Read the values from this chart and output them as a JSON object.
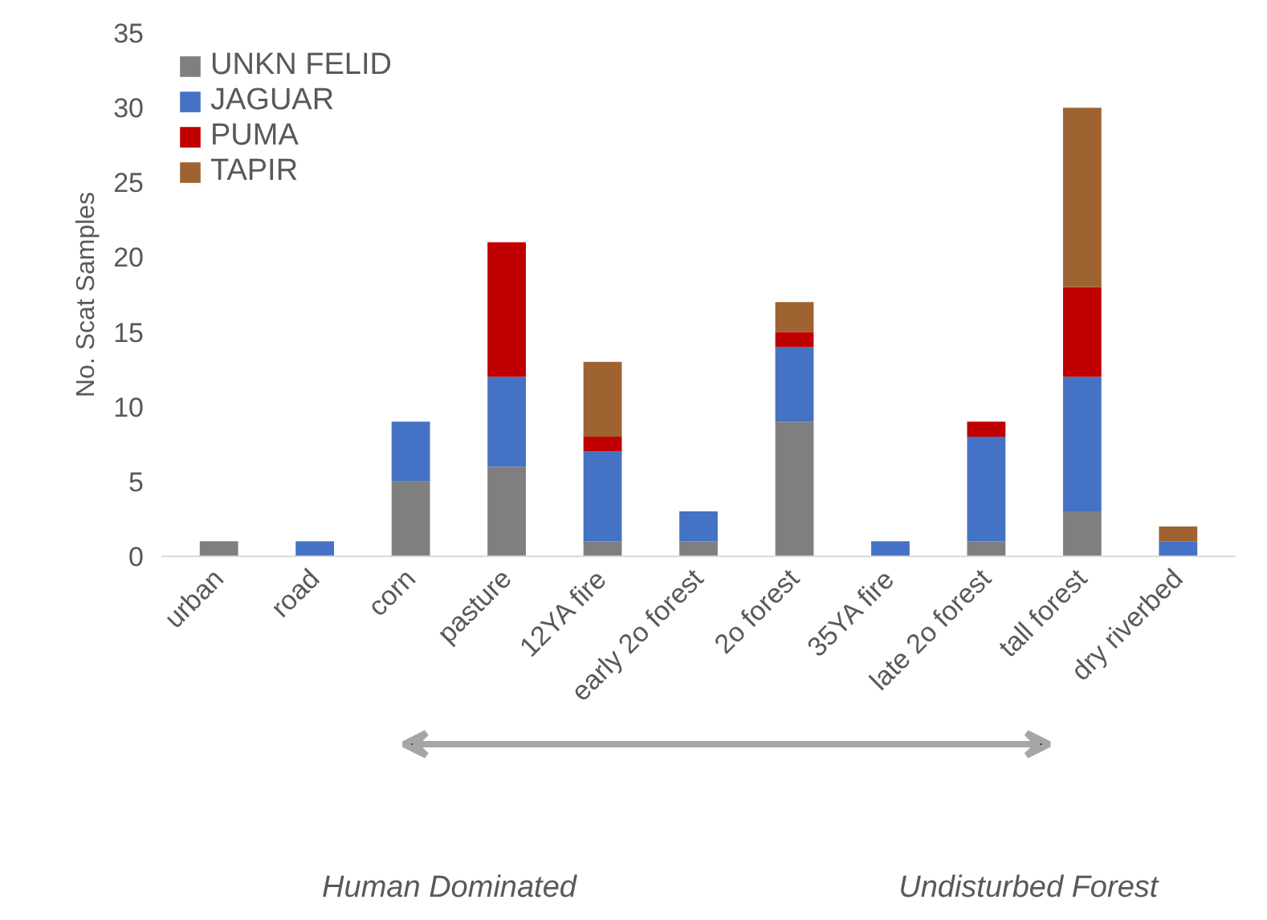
{
  "chart_data": {
    "type": "bar",
    "stacked": true,
    "ylabel": "No. Scat Samples",
    "categories": [
      "urban",
      "road",
      "corn",
      "pasture",
      "12YA fire",
      "early 2o forest",
      "2o forest",
      "35YA fire",
      "late 2o forest",
      "tall forest",
      "dry riverbed"
    ],
    "series": [
      {
        "name": "UNKN FELID",
        "color": "#7f7f7f",
        "values": [
          1,
          0,
          5,
          6,
          1,
          1,
          9,
          0,
          1,
          3,
          0
        ]
      },
      {
        "name": "JAGUAR",
        "color": "#4472c4",
        "values": [
          0,
          1,
          4,
          6,
          6,
          2,
          5,
          1,
          7,
          9,
          1
        ]
      },
      {
        "name": "PUMA",
        "color": "#c00000",
        "values": [
          0,
          0,
          0,
          9,
          1,
          0,
          1,
          0,
          1,
          6,
          0
        ]
      },
      {
        "name": "TAPIR",
        "color": "#9e6330",
        "values": [
          0,
          0,
          0,
          0,
          5,
          0,
          2,
          0,
          0,
          12,
          1
        ]
      }
    ],
    "ylim": [
      0,
      35
    ],
    "yticks": [
      0,
      5,
      10,
      15,
      20,
      25,
      30,
      35
    ],
    "grid": false,
    "legend": "top left",
    "annotations": [
      "Human Dominated",
      "Undisturbed Forest"
    ]
  }
}
